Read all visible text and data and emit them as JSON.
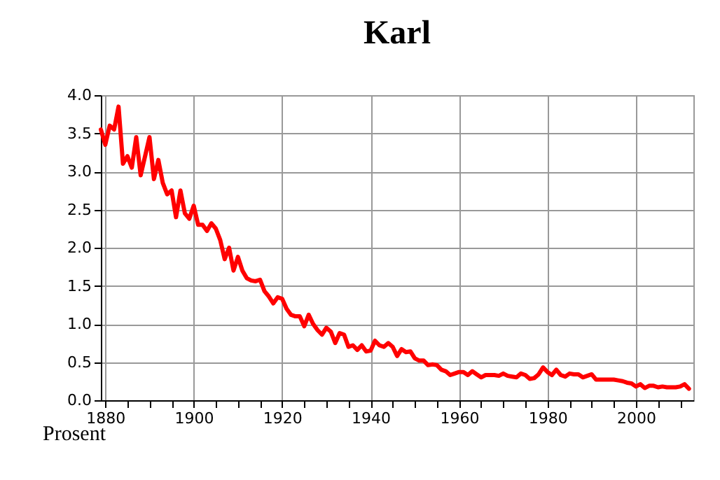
{
  "chart_data": {
    "type": "line",
    "title": "Karl",
    "ylabel": "Prosent",
    "x": [
      1879,
      1880,
      1881,
      1882,
      1883,
      1884,
      1885,
      1886,
      1887,
      1888,
      1889,
      1890,
      1891,
      1892,
      1893,
      1894,
      1895,
      1896,
      1897,
      1898,
      1899,
      1900,
      1901,
      1902,
      1903,
      1904,
      1905,
      1906,
      1907,
      1908,
      1909,
      1910,
      1911,
      1912,
      1913,
      1914,
      1915,
      1916,
      1917,
      1918,
      1919,
      1920,
      1921,
      1922,
      1923,
      1924,
      1925,
      1926,
      1927,
      1928,
      1929,
      1930,
      1931,
      1932,
      1933,
      1934,
      1935,
      1936,
      1937,
      1938,
      1939,
      1940,
      1941,
      1942,
      1943,
      1944,
      1945,
      1946,
      1947,
      1948,
      1949,
      1950,
      1951,
      1952,
      1953,
      1954,
      1955,
      1956,
      1957,
      1958,
      1959,
      1960,
      1961,
      1962,
      1963,
      1964,
      1965,
      1966,
      1967,
      1968,
      1969,
      1970,
      1971,
      1972,
      1973,
      1974,
      1975,
      1976,
      1977,
      1978,
      1979,
      1980,
      1981,
      1982,
      1983,
      1984,
      1985,
      1986,
      1987,
      1988,
      1989,
      1990,
      1991,
      1992,
      1993,
      1994,
      1995,
      1996,
      1997,
      1998,
      1999,
      2000,
      2001,
      2002,
      2003,
      2004,
      2005,
      2006,
      2007,
      2008,
      2009,
      2010,
      2011,
      2012
    ],
    "series": [
      {
        "color": "#ff0000",
        "values": [
          3.55,
          3.35,
          3.6,
          3.55,
          3.85,
          3.1,
          3.2,
          3.05,
          3.45,
          2.95,
          3.2,
          3.45,
          2.9,
          3.15,
          2.85,
          2.7,
          2.75,
          2.4,
          2.75,
          2.45,
          2.38,
          2.55,
          2.3,
          2.3,
          2.22,
          2.32,
          2.25,
          2.1,
          1.85,
          2.0,
          1.7,
          1.88,
          1.7,
          1.6,
          1.57,
          1.56,
          1.58,
          1.43,
          1.36,
          1.27,
          1.35,
          1.33,
          1.2,
          1.12,
          1.1,
          1.1,
          0.97,
          1.12,
          1.0,
          0.92,
          0.86,
          0.95,
          0.9,
          0.75,
          0.88,
          0.86,
          0.7,
          0.72,
          0.66,
          0.72,
          0.64,
          0.65,
          0.78,
          0.72,
          0.7,
          0.75,
          0.7,
          0.58,
          0.67,
          0.63,
          0.64,
          0.55,
          0.52,
          0.52,
          0.46,
          0.47,
          0.46,
          0.4,
          0.38,
          0.33,
          0.35,
          0.37,
          0.37,
          0.33,
          0.38,
          0.34,
          0.3,
          0.33,
          0.33,
          0.33,
          0.32,
          0.35,
          0.32,
          0.31,
          0.3,
          0.35,
          0.33,
          0.28,
          0.29,
          0.34,
          0.43,
          0.37,
          0.33,
          0.4,
          0.33,
          0.31,
          0.35,
          0.34,
          0.34,
          0.3,
          0.32,
          0.34,
          0.27,
          0.27,
          0.27,
          0.27,
          0.27,
          0.26,
          0.25,
          0.23,
          0.22,
          0.18,
          0.21,
          0.16,
          0.19,
          0.19,
          0.17,
          0.18,
          0.17,
          0.17,
          0.17,
          0.18,
          0.21,
          0.15
        ]
      }
    ],
    "xlim": [
      1879,
      2013
    ],
    "xticks": [
      1880,
      {
        "value": 1885,
        "label": null
      },
      {
        "value": 1890,
        "label": null
      },
      {
        "value": 1895,
        "label": null
      },
      1900,
      {
        "value": 1905,
        "label": null
      },
      {
        "value": 1910,
        "label": null
      },
      {
        "value": 1915,
        "label": null
      },
      1920,
      {
        "value": 1925,
        "label": null
      },
      {
        "value": 1930,
        "label": null
      },
      {
        "value": 1935,
        "label": null
      },
      1940,
      {
        "value": 1945,
        "label": null
      },
      {
        "value": 1950,
        "label": null
      },
      {
        "value": 1955,
        "label": null
      },
      1960,
      {
        "value": 1965,
        "label": null
      },
      {
        "value": 1970,
        "label": null
      },
      {
        "value": 1975,
        "label": null
      },
      1980,
      {
        "value": 1985,
        "label": null
      },
      {
        "value": 1990,
        "label": null
      },
      {
        "value": 1995,
        "label": null
      },
      2000,
      {
        "value": 2005,
        "label": null
      },
      {
        "value": 2010,
        "label": null
      }
    ],
    "ylim": [
      0,
      4
    ],
    "yticks": [
      {
        "value": 0,
        "label": "0.0"
      },
      {
        "value": 0.5,
        "label": "0.5"
      },
      {
        "value": 1,
        "label": "1.0"
      },
      {
        "value": 1.5,
        "label": "1.5"
      },
      {
        "value": 2,
        "label": "2.0"
      },
      {
        "value": 2.5,
        "label": "2.5"
      },
      {
        "value": 3,
        "label": "3.0"
      },
      {
        "value": 3.5,
        "label": "3.5"
      },
      {
        "value": 4,
        "label": "4.0"
      }
    ],
    "grid": true,
    "marker": "none",
    "line_style": "solid"
  }
}
